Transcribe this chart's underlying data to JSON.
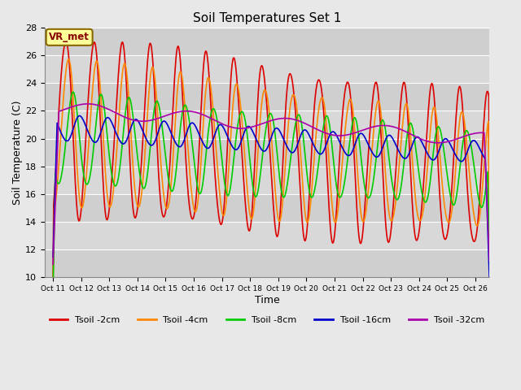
{
  "title": "Soil Temperatures Set 1",
  "xlabel": "Time",
  "ylabel": "Soil Temperature (C)",
  "ylim": [
    10,
    28
  ],
  "annotation_text": "VR_met",
  "series_names": [
    "Tsoil -2cm",
    "Tsoil -4cm",
    "Tsoil -8cm",
    "Tsoil -16cm",
    "Tsoil -32cm"
  ],
  "series_colors": [
    "#dd0000",
    "#ff8800",
    "#00cc00",
    "#0000cc",
    "#aa00aa"
  ],
  "xtick_labels": [
    "Oct 11",
    "Oct 12",
    "Oct 13",
    "Oct 14",
    "Oct 15",
    "Oct 16",
    "Oct 17",
    "Oct 18",
    "Oct 19",
    "Oct 20",
    "Oct 21",
    "Oct 22",
    "Oct 23",
    "Oct 24",
    "Oct 25",
    "Oct 26"
  ],
  "yticks": [
    10,
    12,
    14,
    16,
    18,
    20,
    22,
    24,
    26,
    28
  ],
  "fig_bg_color": "#e8e8e8",
  "plot_bg_color": "#d8d8d8",
  "grid_color": "#ffffff",
  "annotation_bg": "#ffff99",
  "annotation_border": "#886600",
  "annotation_text_color": "#880000",
  "lw": 1.2
}
